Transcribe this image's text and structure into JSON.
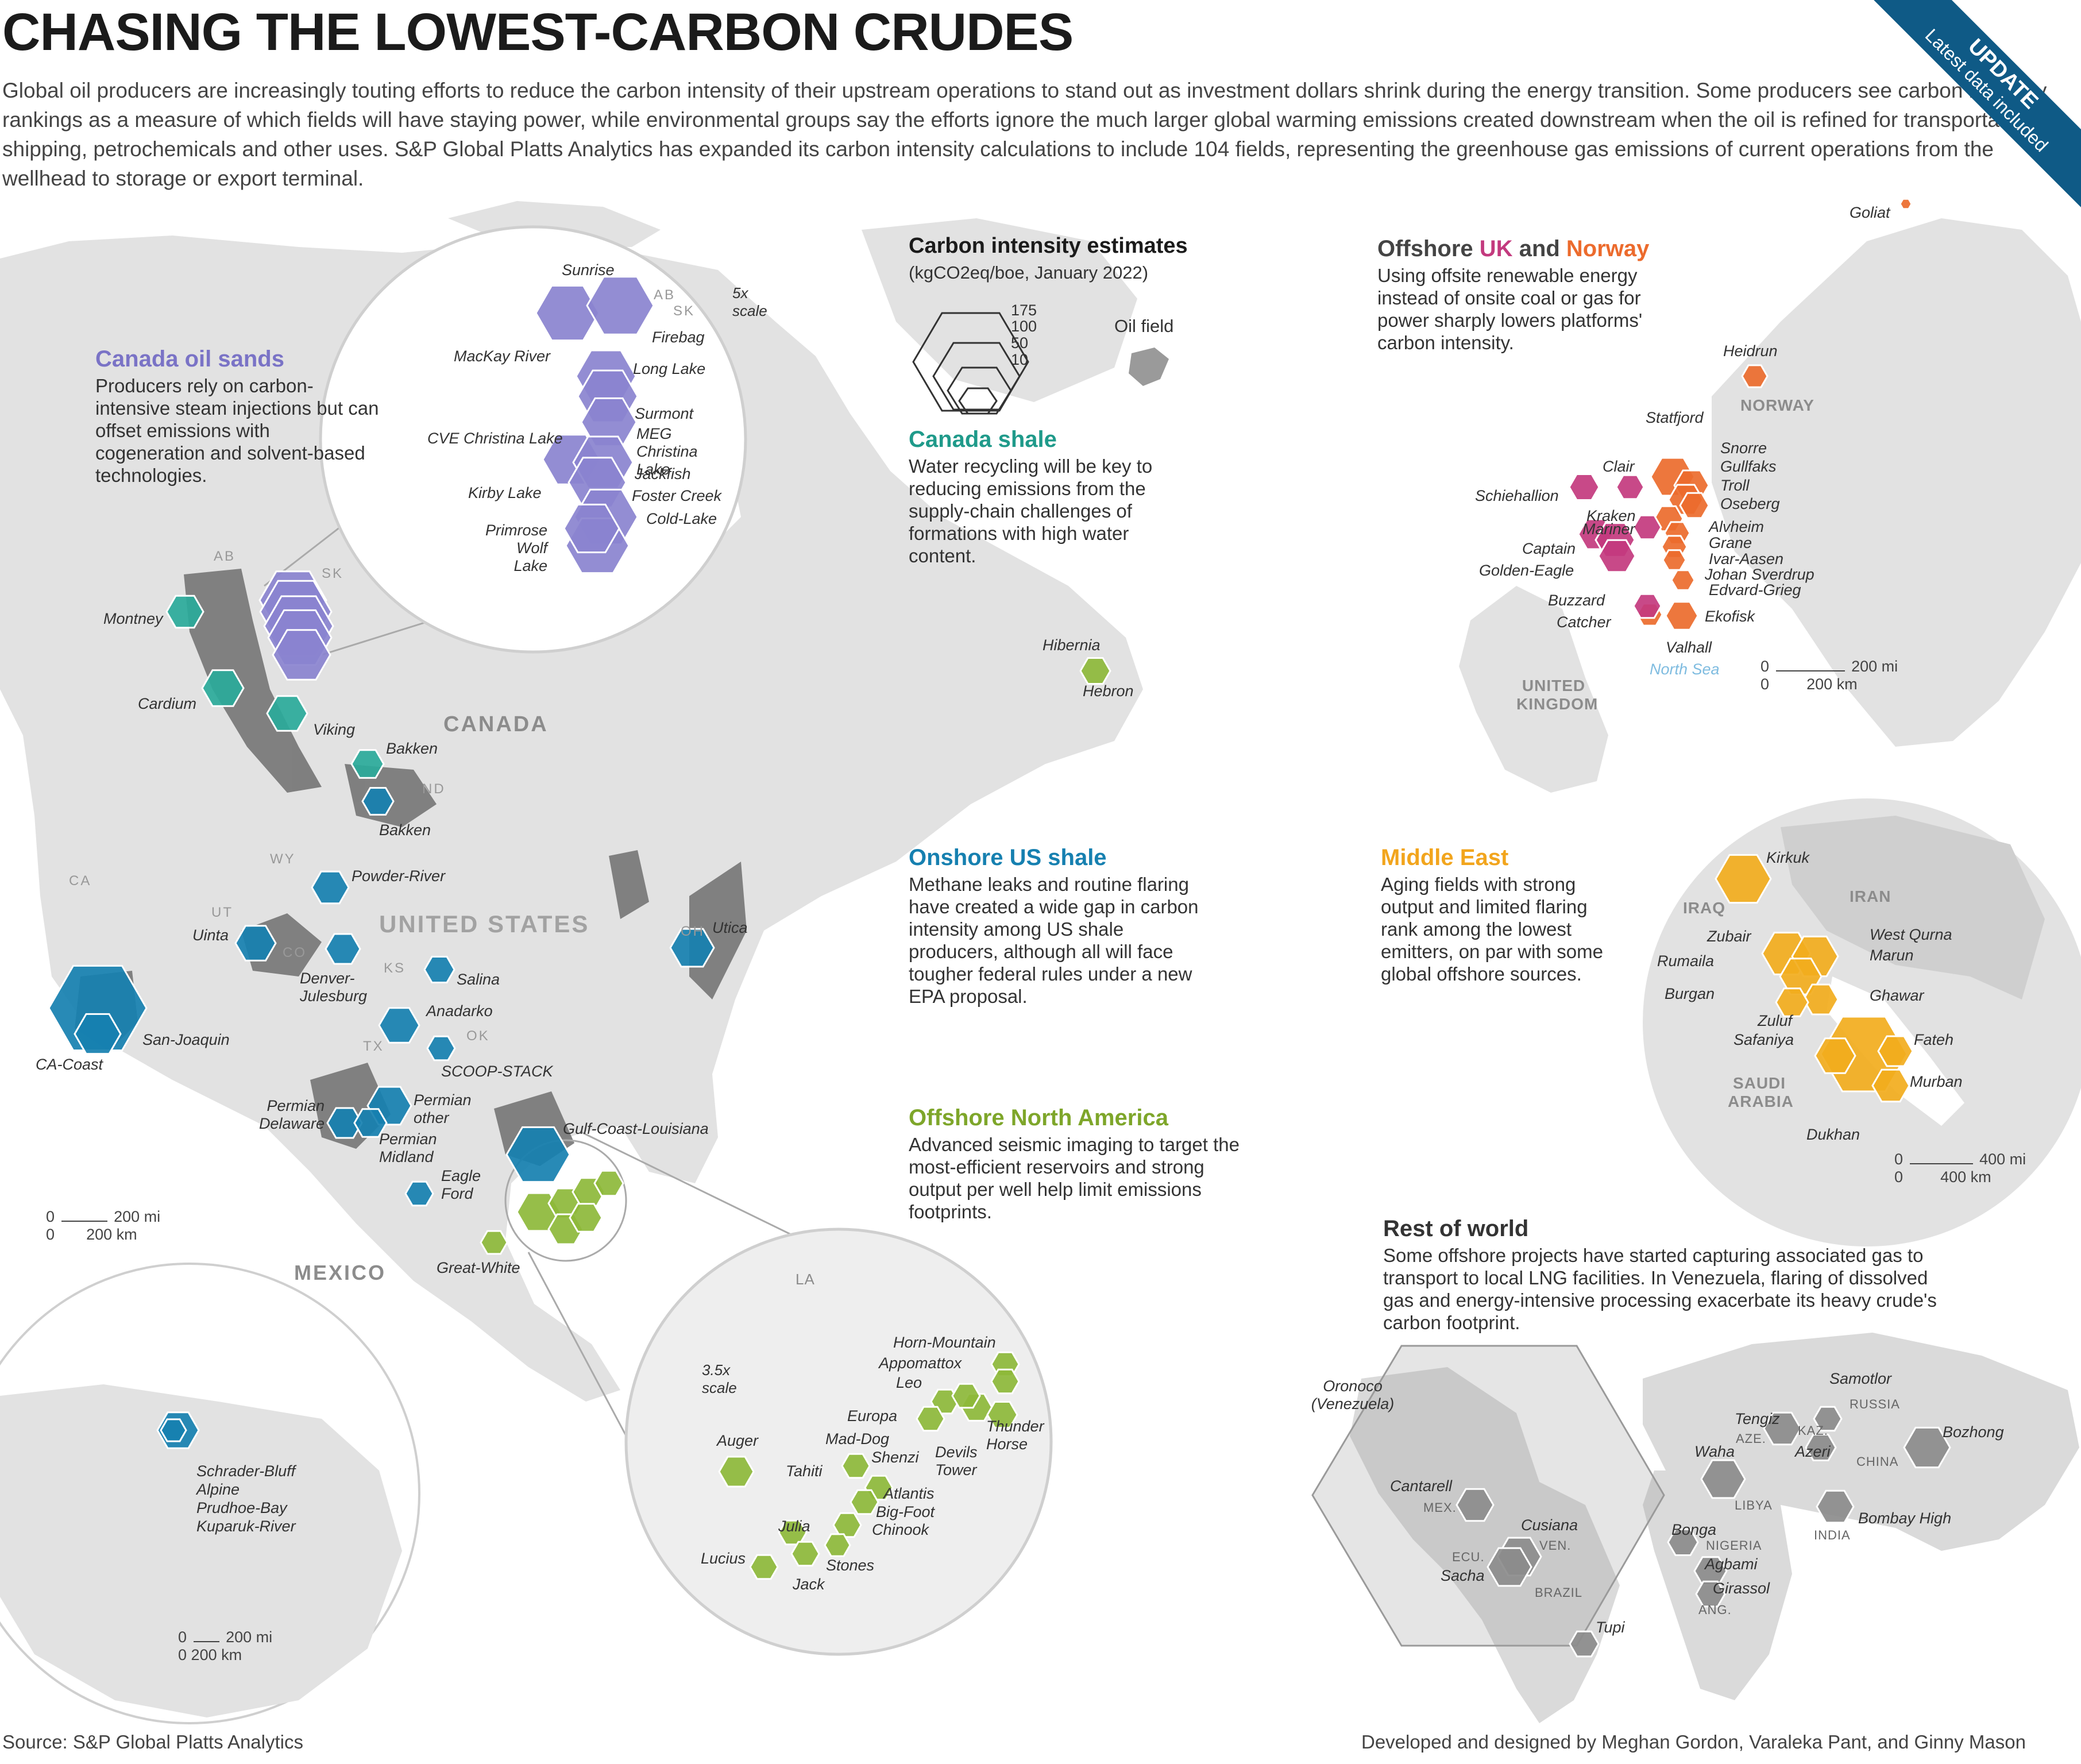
{
  "title": "CHASING THE LOWEST-CARBON CRUDES",
  "intro": "Global oil producers are increasingly touting efforts to reduce the carbon intensity of their upstream operations to stand out as investment dollars shrink during the energy transition. Some producers see carbon intensity rankings as a measure of which fields will have staying power, while environmental groups say the efforts ignore the much larger global warming emissions created downstream when the oil is refined for transportation, shipping, petrochemicals and other uses. S&P Global Platts Analytics has expanded its carbon intensity calculations to include 104 fields, representing the greenhouse gas emissions of current operations from the wellhead to storage or export terminal.",
  "ribbon": {
    "top": "UPDATE",
    "bottom": "Latest data included",
    "color": "#0f5a86"
  },
  "legend": {
    "title": "Carbon intensity estimates",
    "subtitle": "(kgCO2eq/boe, January 2022)",
    "sizes": [
      "175",
      "100",
      "50",
      "10"
    ],
    "field_label": "Oil field"
  },
  "colors": {
    "canada_oil_sands": "#8a83cf",
    "canada_shale": "#2aaa9a",
    "us_shale": "#1680b0",
    "offshore_na": "#8db93a",
    "uk": "#c33a7e",
    "norway": "#ec6b2d",
    "middle_east": "#f2ad1d",
    "rest": "#8c8c8c",
    "land": "#e2e2e2",
    "basin": "#757575"
  },
  "sections": {
    "canada_oil_sands": {
      "title": "Canada oil sands",
      "text": "Producers rely on carbon-intensive steam injections but can offset emissions with cogeneration and solvent-based technologies."
    },
    "canada_shale": {
      "title": "Canada shale",
      "text": "Water recycling will be key to reducing emissions from the supply-chain challenges of formations with high water content."
    },
    "us_shale": {
      "title": "Onshore US shale",
      "text": "Methane leaks and routine flaring have created a wide gap in carbon intensity among US shale producers, although all will face tougher federal rules under a new EPA proposal."
    },
    "offshore_na": {
      "title": "Offshore North America",
      "text": "Advanced seismic imaging to target the most-efficient reservoirs and strong output per well help limit emissions footprints."
    },
    "uk_norway": {
      "title_a": "Offshore ",
      "title_uk": "UK",
      "title_and": " and ",
      "title_no": "Norway",
      "text": "Using offsite renewable energy instead of onsite coal or gas for power sharply lowers platforms' carbon intensity."
    },
    "middle_east": {
      "title": "Middle East",
      "text": "Aging fields with strong output and limited flaring rank among the lowest emitters, on par with some global offshore sources."
    },
    "rest": {
      "title": "Rest of world",
      "text": "Some offshore projects have started capturing associated gas to transport to local LNG facilities. In Venezuela, flaring of dissolved gas and energy-intensive processing exacerbate its heavy crude's carbon footprint."
    }
  },
  "regions": {
    "canada": "CANADA",
    "us": "UNITED STATES",
    "mexico": "MEXICO",
    "norway": "NORWAY",
    "uk": "UNITED KINGDOM",
    "north_sea": "North Sea",
    "iraq": "IRAQ",
    "iran": "IRAN",
    "saudi": "SAUDI ARABIA",
    "la": "LA",
    "russia": "RUSSIA",
    "china": "CHINA",
    "kaz": "KAZ.",
    "aze": "AZE.",
    "libya": "LIBYA",
    "nigeria": "NIGERIA",
    "ang": "ANG.",
    "india": "INDIA",
    "mex": "MEX.",
    "ven": "VEN.",
    "ecu": "ECU.",
    "brazil": "BRAZIL",
    "ab": "AB",
    "sk": "SK",
    "nd": "ND",
    "wy": "WY",
    "ut": "UT",
    "co": "CO",
    "ks": "KS",
    "ok": "OK",
    "tx": "TX",
    "ca": "CA",
    "oh": "OH",
    "ab2": "AB",
    "sk2": "SK"
  },
  "scale_text": {
    "five_x": "5x scale",
    "three_x": "3.5x scale"
  },
  "scales": {
    "na": {
      "mi": "200 mi",
      "km": "200 km",
      "zero": "0"
    },
    "alaska": {
      "mi": "200 mi",
      "km": "200 km",
      "zero": "0"
    },
    "north_sea": {
      "mi": "200 mi",
      "km": "200 km",
      "zero": "0"
    },
    "me": {
      "mi": "400 mi",
      "km": "400 km",
      "zero": "0"
    }
  },
  "fields": {
    "oil_sands_main": [
      "Sunrise",
      "Firebag",
      "MacKay River",
      "Long Lake",
      "Surmont",
      "MEG Christina Lake",
      "CVE Christina Lake",
      "Jackfish",
      "Kirby Lake",
      "Foster Creek",
      "Cold-Lake",
      "Primrose Wolf Lake"
    ],
    "canada_shale": [
      "Montney",
      "Cardium",
      "Viking",
      "Bakken"
    ],
    "us": [
      "Bakken",
      "Powder-River",
      "Uinta",
      "Denver-Julesburg",
      "Salina",
      "Utica",
      "San-Joaquin",
      "CA-Coast",
      "Anadarko",
      "SCOOP-STACK",
      "Permian other",
      "Permian Delaware",
      "Permian Midland",
      "Eagle Ford",
      "Gulf-Coast-Louisiana"
    ],
    "offshore": [
      "Hibernia",
      "Hebron",
      "Great-White"
    ],
    "gom": [
      "Horn-Mountain",
      "Appomattox",
      "Leo",
      "Europa",
      "Mad-Dog",
      "Auger",
      "Shenzi",
      "Thunder Horse",
      "Devils Tower",
      "Tahiti",
      "Atlantis",
      "Big-Foot",
      "Julia",
      "Chinook",
      "Lucius",
      "Stones",
      "Jack"
    ],
    "alaska": [
      "Schrader-Bluff",
      "Alpine",
      "Prudhoe-Bay",
      "Kuparuk-River"
    ],
    "north_sea": [
      "Goliat",
      "Heidrun",
      "Statfjord",
      "Snorre",
      "Gullfaks",
      "Clair",
      "Troll",
      "Schiehallion",
      "Oseberg",
      "Kraken",
      "Mariner",
      "Alvheim",
      "Grane",
      "Captain",
      "Ivar-Aasen",
      "Golden-Eagle",
      "Johan Sverdrup",
      "Edvard-Grieg",
      "Buzzard",
      "Ekofisk",
      "Catcher",
      "Valhall"
    ],
    "middle_east": [
      "Kirkuk",
      "West Qurna",
      "Zubair",
      "Marun",
      "Rumaila",
      "Burgan",
      "Ghawar",
      "Zuluf",
      "Safaniya",
      "Fateh",
      "Murban",
      "Dukhan"
    ],
    "rest": [
      "Oronoco (Venezuela)",
      "Samotlor",
      "Tengiz",
      "Bozhong",
      "Azeri",
      "Waha",
      "Cantarell",
      "Bombay High",
      "Cusiana",
      "Bonga",
      "Sacha",
      "Agbami",
      "Girassol",
      "Tupi"
    ]
  },
  "source": "Source: S&P Global Platts Analytics",
  "credits": "Developed and designed by Meghan Gordon, Varaleka Pant, and Ginny Mason"
}
